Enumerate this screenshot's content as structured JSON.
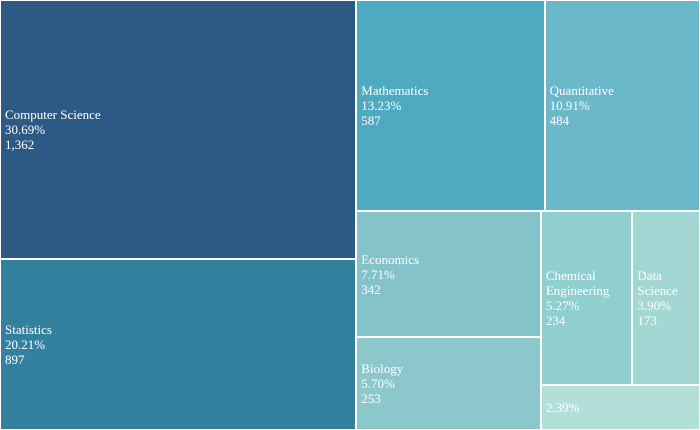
{
  "chart_data": {
    "type": "treemap",
    "categories": [
      "Computer Science",
      "Statistics",
      "Mathematics",
      "Quantitative",
      "Economics",
      "Biology",
      "Chemical Engineering",
      "Data Science",
      null
    ],
    "values": [
      1362,
      897,
      587,
      484,
      342,
      253,
      234,
      173,
      106
    ],
    "value_labels": [
      "1,362",
      "897",
      "587",
      "484",
      "342",
      "253",
      "234",
      "173",
      null
    ],
    "shares": [
      30.69,
      20.21,
      13.23,
      10.91,
      7.71,
      5.7,
      5.27,
      3.9,
      2.39
    ],
    "share_labels": [
      "30.69%",
      "20.21%",
      "13.23%",
      "10.91%",
      "7.71%",
      "5.70%",
      "5.27%",
      "3.90%",
      "2.39%"
    ],
    "colors": [
      "#2d5985",
      "#34809f",
      "#4eaac0",
      "#6ab8ca",
      "#85c3ca",
      "#8cc7cb",
      "#90cfcf",
      "#a2d7d4",
      "#b3dfd9"
    ]
  }
}
